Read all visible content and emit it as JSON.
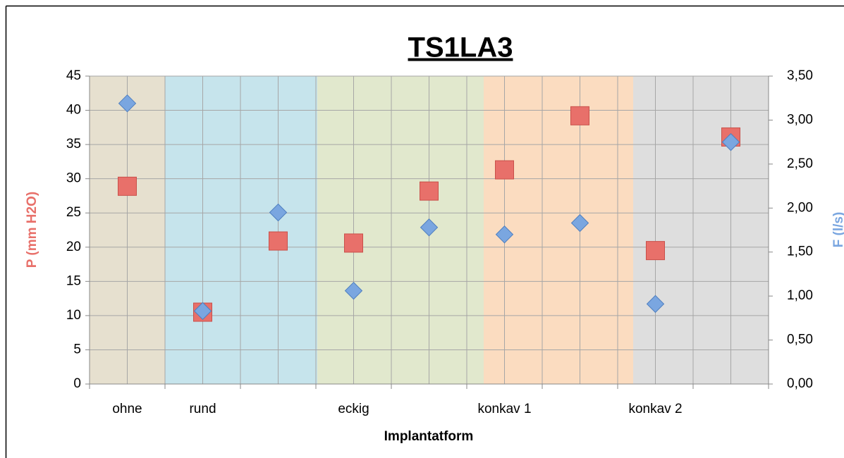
{
  "chart_data": {
    "type": "scatter",
    "title": "TS1LA3",
    "x_label": "Implantatform",
    "y_label": "P (mm H2O)",
    "y2_label": "F (l/s)",
    "categories": [
      "ohne",
      "rund",
      null,
      "eckig",
      null,
      "konkav 1",
      null,
      "konkav 2",
      null
    ],
    "series": [
      {
        "color": "#e8706a",
        "marker": "square",
        "values": [
          28.9,
          10.5,
          20.9,
          20.6,
          28.2,
          31.3,
          39.2,
          19.5,
          36.1
        ]
      },
      {
        "color": "#7aa6e0",
        "marker": "diamond",
        "axis": "y2",
        "values": [
          3.19,
          0.83,
          1.95,
          1.06,
          1.78,
          1.7,
          1.83,
          0.91,
          2.75
        ]
      }
    ],
    "ylim": [
      0,
      45
    ],
    "yticks": [
      0,
      5,
      10,
      15,
      20,
      25,
      30,
      35,
      40,
      45
    ],
    "y2lim": [
      0,
      3.5
    ],
    "y2ticks": [
      {
        "value": 0,
        "label": "0,00"
      },
      {
        "value": 0.5,
        "label": "0,50"
      },
      {
        "value": 1,
        "label": "1,00"
      },
      {
        "value": 1.5,
        "label": "1,50"
      },
      {
        "value": 2,
        "label": "2,00"
      },
      {
        "value": 2.5,
        "label": "2,50"
      },
      {
        "value": 3,
        "label": "3,00"
      },
      {
        "value": 3.5,
        "label": "3,50"
      }
    ],
    "grid": true
  }
}
